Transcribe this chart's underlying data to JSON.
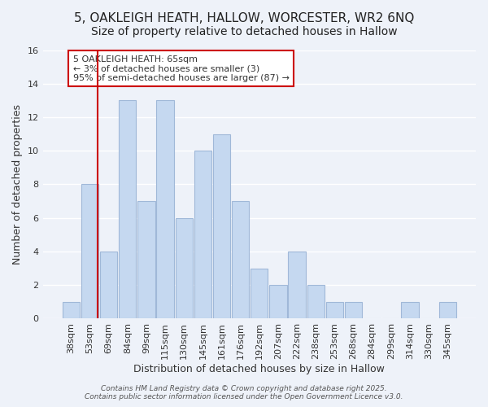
{
  "title_line1": "5, OAKLEIGH HEATH, HALLOW, WORCESTER, WR2 6NQ",
  "title_line2": "Size of property relative to detached houses in Hallow",
  "xlabel": "Distribution of detached houses by size in Hallow",
  "ylabel": "Number of detached properties",
  "bar_labels": [
    "38sqm",
    "53sqm",
    "69sqm",
    "84sqm",
    "99sqm",
    "115sqm",
    "130sqm",
    "145sqm",
    "161sqm",
    "176sqm",
    "192sqm",
    "207sqm",
    "222sqm",
    "238sqm",
    "253sqm",
    "268sqm",
    "284sqm",
    "299sqm",
    "314sqm",
    "330sqm",
    "345sqm"
  ],
  "bar_values": [
    1,
    8,
    4,
    13,
    7,
    13,
    6,
    10,
    11,
    7,
    3,
    2,
    4,
    2,
    1,
    1,
    0,
    0,
    1,
    0,
    1
  ],
  "bar_color": "#c5d8f0",
  "bar_edge_color": "#a0b8d8",
  "vline_x_offset": 1.425,
  "vline_color": "#cc0000",
  "annotation_text": "5 OAKLEIGH HEATH: 65sqm\n← 3% of detached houses are smaller (3)\n95% of semi-detached houses are larger (87) →",
  "annotation_box_edgecolor": "#cc0000",
  "annotation_box_facecolor": "#ffffff",
  "ylim": [
    0,
    16
  ],
  "yticks": [
    0,
    2,
    4,
    6,
    8,
    10,
    12,
    14,
    16
  ],
  "footer_text": "Contains HM Land Registry data © Crown copyright and database right 2025.\nContains public sector information licensed under the Open Government Licence v3.0.",
  "background_color": "#eef2f9",
  "grid_color": "#ffffff",
  "title_fontsize": 11,
  "subtitle_fontsize": 10,
  "axis_label_fontsize": 9,
  "tick_fontsize": 8,
  "annotation_fontsize": 8,
  "footer_fontsize": 6.5
}
